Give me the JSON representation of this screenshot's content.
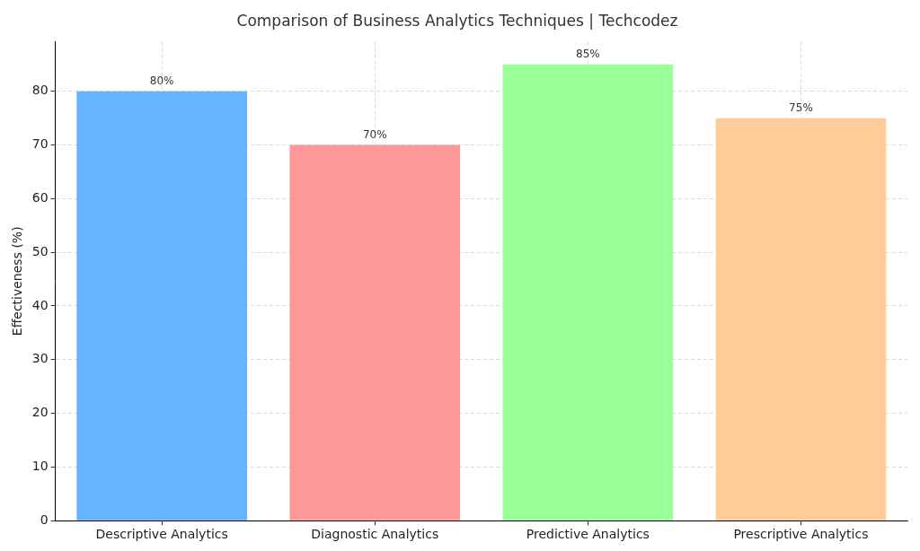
{
  "chart_data": {
    "type": "bar",
    "title": "Comparison of Business Analytics Techniques | Techcodez",
    "y_label": "Effectiveness (%)",
    "categories": [
      "Descriptive Analytics",
      "Diagnostic Analytics",
      "Predictive Analytics",
      "Prescriptive Analytics"
    ],
    "values": [
      80,
      70,
      85,
      75
    ],
    "value_labels": [
      "80%",
      "70%",
      "85%",
      "75%"
    ],
    "colors": [
      "#66b3ff",
      "#ff9999",
      "#99ff99",
      "#ffcc99"
    ],
    "ylim": [
      0,
      89.25
    ],
    "yticks": [
      0,
      10,
      20,
      30,
      40,
      50,
      60,
      70,
      80
    ],
    "grid": true,
    "data_labels": true
  }
}
